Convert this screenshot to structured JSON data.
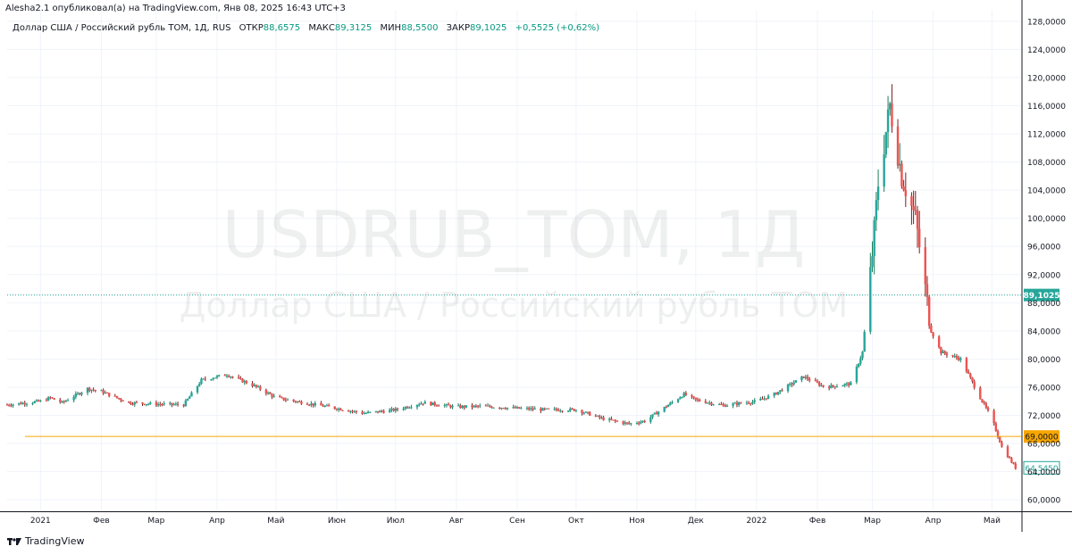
{
  "header": {
    "published_line": "Alesha2.1 опубликовал(а) на TradingView.com, Янв 08, 2025 16:43 UTC+3"
  },
  "legend": {
    "symbol": "Доллар США / Российский рубль TOM, 1Д, RUS",
    "open_label": "ОТКР",
    "open": "88,6575",
    "high_label": "МАКС",
    "high": "89,3125",
    "low_label": "МИН",
    "low": "88,5500",
    "close_label": "ЗАКР",
    "close": "89,1025",
    "change": "+0,5525 (+0,62%)"
  },
  "watermark": {
    "line1": "USDRUB_TOM, 1Д",
    "line2": "Доллар США / Российский рубль TOM"
  },
  "footer": {
    "brand": "TradingView",
    "logo_icon": "tradingview-logo-icon"
  },
  "colors": {
    "up": "#26a69a",
    "down": "#ef5350",
    "wick_up": "#1e7c5c",
    "wick_down": "#7a1f1f",
    "hline": "#f7a600",
    "last_price": "#26a69a"
  },
  "chart_data": {
    "type": "candlestick",
    "symbol": "USDRUB_TOM",
    "interval": "1Д",
    "x_tick_labels": [
      "2021",
      "Фев",
      "Мар",
      "Апр",
      "Май",
      "Июн",
      "Июл",
      "Авг",
      "Сен",
      "Окт",
      "Ноя",
      "Дек",
      "2022",
      "Фев",
      "Мар",
      "Апр",
      "Май"
    ],
    "y_tick_labels": [
      "60,0000",
      "64,0000",
      "68,0000",
      "72,0000",
      "76,0000",
      "80,0000",
      "84,0000",
      "88,0000",
      "92,0000",
      "96,0000",
      "100,0000",
      "104,0000",
      "108,0000",
      "112,0000",
      "116,0000",
      "120,0000",
      "124,0000",
      "128,0000"
    ],
    "ylim": [
      58.5,
      129.5
    ],
    "grid": true,
    "markers": [
      {
        "label": "89,1025",
        "value": 89.1025,
        "kind": "dotted-line"
      },
      {
        "label": "69,0000",
        "value": 69.0,
        "kind": "horizontal-line"
      },
      {
        "label": "64,5450",
        "value": 64.545,
        "kind": "last-price"
      }
    ],
    "price_path": [
      [
        "2020-12-15",
        73.5
      ],
      [
        "2021-01-01",
        74.0
      ],
      [
        "2021-01-06",
        74.5
      ],
      [
        "2021-01-12",
        73.8
      ],
      [
        "2021-01-25",
        75.8
      ],
      [
        "2021-02-01",
        75.4
      ],
      [
        "2021-02-15",
        73.8
      ],
      [
        "2021-03-01",
        73.6
      ],
      [
        "2021-03-15",
        73.5
      ],
      [
        "2021-03-24",
        77.0
      ],
      [
        "2021-04-06",
        77.8
      ],
      [
        "2021-04-20",
        76.2
      ],
      [
        "2021-05-01",
        74.5
      ],
      [
        "2021-05-15",
        73.8
      ],
      [
        "2021-06-01",
        73.0
      ],
      [
        "2021-06-15",
        72.3
      ],
      [
        "2021-07-01",
        72.8
      ],
      [
        "2021-07-15",
        73.8
      ],
      [
        "2021-08-01",
        73.2
      ],
      [
        "2021-08-15",
        73.3
      ],
      [
        "2021-09-01",
        73.0
      ],
      [
        "2021-09-15",
        72.8
      ],
      [
        "2021-10-01",
        72.8
      ],
      [
        "2021-10-15",
        71.5
      ],
      [
        "2021-10-28",
        70.8
      ],
      [
        "2021-11-05",
        71.2
      ],
      [
        "2021-11-25",
        75.0
      ],
      [
        "2021-12-01",
        74.2
      ],
      [
        "2021-12-15",
        73.4
      ],
      [
        "2022-01-01",
        74.0
      ],
      [
        "2022-01-10",
        75.0
      ],
      [
        "2022-01-25",
        77.5
      ],
      [
        "2022-02-05",
        76.0
      ],
      [
        "2022-02-18",
        76.5
      ],
      [
        "2022-02-24",
        81.0
      ],
      [
        "2022-03-01",
        95.0
      ],
      [
        "2022-03-04",
        105.0
      ],
      [
        "2022-03-10",
        116.0
      ],
      [
        "2022-03-16",
        106.0
      ],
      [
        "2022-03-23",
        100.0
      ],
      [
        "2022-03-31",
        84.0
      ],
      [
        "2022-04-05",
        81.0
      ],
      [
        "2022-04-15",
        80.0
      ],
      [
        "2022-04-25",
        74.5
      ],
      [
        "2022-05-01",
        71.5
      ],
      [
        "2022-05-06",
        67.5
      ],
      [
        "2022-05-13",
        64.545
      ]
    ]
  }
}
